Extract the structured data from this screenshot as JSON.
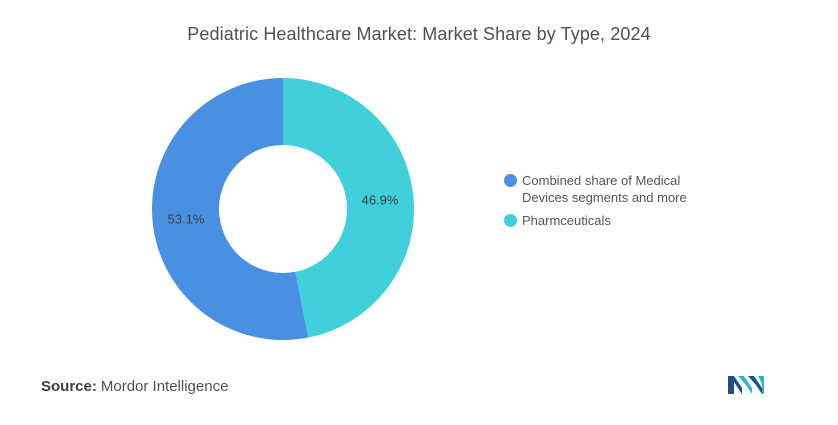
{
  "chart_data": {
    "type": "pie",
    "title": "Pediatric Healthcare Market: Market Share by Type, 2024",
    "categories": [
      "Combined share of Medical Devices segments and more",
      "Pharmceuticals"
    ],
    "values": [
      53.1,
      46.9
    ],
    "value_labels": [
      "53.1%",
      "46.9%"
    ],
    "colors": [
      "#4a90e2",
      "#3fd0dc"
    ],
    "legend_position": "right",
    "legend": [
      "Combined share of Medical",
      "Devices segments and more",
      "Pharmceuticals"
    ],
    "donut": true
  },
  "source": {
    "key": "Source:",
    "value": "Mordor Intelligence"
  },
  "logo": {
    "icon": "mordor-intelligence-logo-icon",
    "colors": [
      "#1f4f86",
      "#2bb9c9"
    ]
  }
}
